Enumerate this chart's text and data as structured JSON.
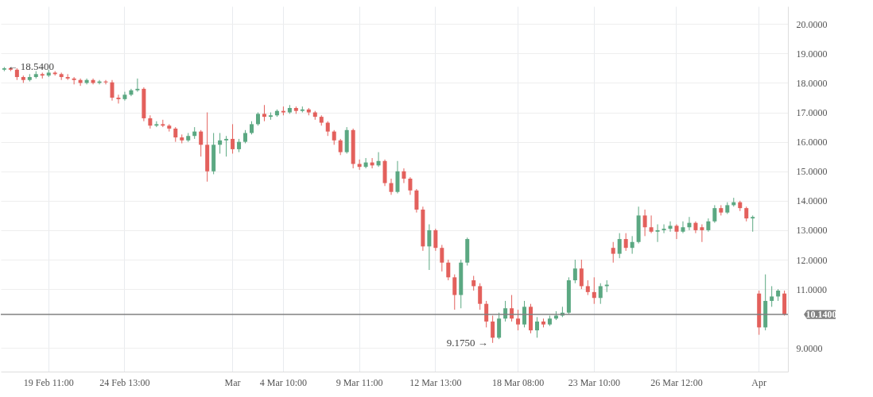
{
  "chart_data": {
    "type": "candlestick",
    "categories": [
      null,
      null,
      null,
      null,
      null,
      null,
      null,
      "19 Feb 11:00",
      null,
      null,
      null,
      null,
      null,
      null,
      null,
      null,
      null,
      null,
      null,
      "24 Feb 13:00",
      null,
      null,
      null,
      null,
      null,
      null,
      null,
      null,
      null,
      null,
      null,
      null,
      null,
      null,
      null,
      null,
      "Mar",
      null,
      null,
      null,
      null,
      null,
      null,
      null,
      "4 Mar 10:00",
      null,
      null,
      null,
      null,
      null,
      null,
      null,
      null,
      null,
      null,
      null,
      "9 Mar 11:00",
      null,
      null,
      null,
      null,
      null,
      null,
      null,
      null,
      null,
      null,
      null,
      "12 Mar 13:00",
      null,
      null,
      null,
      null,
      null,
      null,
      null,
      null,
      null,
      null,
      null,
      null,
      "18 Mar 08:00",
      null,
      null,
      null,
      null,
      null,
      null,
      null,
      null,
      null,
      null,
      null,
      "23 Mar 10:00",
      null,
      null,
      null,
      null,
      null,
      null,
      null,
      null,
      null,
      null,
      null,
      null,
      "26 Mar 12:00",
      null,
      null,
      null,
      null,
      null,
      null,
      null,
      null,
      null,
      null,
      null,
      null,
      "Apr",
      null,
      null,
      null,
      null
    ],
    "ohlc": [
      [
        18.45,
        18.54,
        18.4,
        18.5
      ],
      [
        18.5,
        18.52,
        18.4,
        18.45
      ],
      [
        18.45,
        18.5,
        18.1,
        18.2
      ],
      [
        18.2,
        18.25,
        18.0,
        18.1
      ],
      [
        18.1,
        18.3,
        18.05,
        18.2
      ],
      [
        18.2,
        18.4,
        18.15,
        18.3
      ],
      [
        18.3,
        18.35,
        18.15,
        18.25
      ],
      [
        18.25,
        18.45,
        18.2,
        18.35
      ],
      [
        18.35,
        18.4,
        18.25,
        18.3
      ],
      [
        18.3,
        18.35,
        18.1,
        18.2
      ],
      [
        18.2,
        18.3,
        18.1,
        18.15
      ],
      [
        18.15,
        18.2,
        17.95,
        18.1
      ],
      [
        18.1,
        18.15,
        17.9,
        18.0
      ],
      [
        18.0,
        18.15,
        17.95,
        18.1
      ],
      [
        18.1,
        18.15,
        17.95,
        18.0
      ],
      [
        18.0,
        18.1,
        17.95,
        18.05
      ],
      [
        18.05,
        18.1,
        17.95,
        18.02
      ],
      [
        18.02,
        18.1,
        17.4,
        17.5
      ],
      [
        17.5,
        17.6,
        17.3,
        17.45
      ],
      [
        17.45,
        17.7,
        17.4,
        17.6
      ],
      [
        17.6,
        17.8,
        17.55,
        17.75
      ],
      [
        17.75,
        18.15,
        17.7,
        17.8
      ],
      [
        17.8,
        17.85,
        16.7,
        16.8
      ],
      [
        16.8,
        16.9,
        16.45,
        16.55
      ],
      [
        16.55,
        16.7,
        16.5,
        16.6
      ],
      [
        16.6,
        16.75,
        16.5,
        16.55
      ],
      [
        16.55,
        16.6,
        16.35,
        16.45
      ],
      [
        16.45,
        16.5,
        16.0,
        16.15
      ],
      [
        16.15,
        16.25,
        15.95,
        16.05
      ],
      [
        16.05,
        16.3,
        16.0,
        16.2
      ],
      [
        16.2,
        16.5,
        16.1,
        16.35
      ],
      [
        16.35,
        16.4,
        15.5,
        15.9
      ],
      [
        15.9,
        17.0,
        14.65,
        15.0
      ],
      [
        15.0,
        16.3,
        14.9,
        15.9
      ],
      [
        15.9,
        16.3,
        15.6,
        16.05
      ],
      [
        16.05,
        16.2,
        15.5,
        16.1
      ],
      [
        16.1,
        16.6,
        15.6,
        15.75
      ],
      [
        15.75,
        16.1,
        15.65,
        16.0
      ],
      [
        16.0,
        16.4,
        15.95,
        16.3
      ],
      [
        16.3,
        16.7,
        16.25,
        16.6
      ],
      [
        16.6,
        17.0,
        16.55,
        16.95
      ],
      [
        16.95,
        17.25,
        16.7,
        16.85
      ],
      [
        16.85,
        17.0,
        16.75,
        16.9
      ],
      [
        16.9,
        17.1,
        16.85,
        17.05
      ],
      [
        17.05,
        17.2,
        16.9,
        17.0
      ],
      [
        17.0,
        17.25,
        16.95,
        17.15
      ],
      [
        17.15,
        17.2,
        16.95,
        17.05
      ],
      [
        17.05,
        17.2,
        17.0,
        17.1
      ],
      [
        17.1,
        17.15,
        16.9,
        17.0
      ],
      [
        17.0,
        17.05,
        16.75,
        16.85
      ],
      [
        16.85,
        16.9,
        16.55,
        16.65
      ],
      [
        16.65,
        16.7,
        16.2,
        16.35
      ],
      [
        16.35,
        16.4,
        15.9,
        16.05
      ],
      [
        16.05,
        16.1,
        15.55,
        15.65
      ],
      [
        15.65,
        16.5,
        15.6,
        16.4
      ],
      [
        16.4,
        16.45,
        15.1,
        15.25
      ],
      [
        15.25,
        15.4,
        15.05,
        15.15
      ],
      [
        15.15,
        15.45,
        15.1,
        15.3
      ],
      [
        15.3,
        15.45,
        15.1,
        15.2
      ],
      [
        15.2,
        15.65,
        15.15,
        15.35
      ],
      [
        15.35,
        15.4,
        14.5,
        14.6
      ],
      [
        14.6,
        14.75,
        14.2,
        14.3
      ],
      [
        14.3,
        15.35,
        14.25,
        15.0
      ],
      [
        15.0,
        15.1,
        14.6,
        14.75
      ],
      [
        14.75,
        14.8,
        14.2,
        14.35
      ],
      [
        14.35,
        14.4,
        13.6,
        13.7
      ],
      [
        13.7,
        13.8,
        12.3,
        12.45
      ],
      [
        12.45,
        13.2,
        11.65,
        13.0
      ],
      [
        13.0,
        13.05,
        12.3,
        12.4
      ],
      [
        12.4,
        12.5,
        11.6,
        11.9
      ],
      [
        11.9,
        12.0,
        11.3,
        11.4
      ],
      [
        11.4,
        11.5,
        10.3,
        10.8
      ],
      [
        10.8,
        12.0,
        10.35,
        11.9
      ],
      [
        11.9,
        12.75,
        11.8,
        12.7
      ],
      [
        11.3,
        11.45,
        10.95,
        11.1
      ],
      [
        11.1,
        11.2,
        10.3,
        10.5
      ],
      [
        10.5,
        10.6,
        9.7,
        9.9
      ],
      [
        9.9,
        10.1,
        9.175,
        9.35
      ],
      [
        9.35,
        10.2,
        9.3,
        10.0
      ],
      [
        10.0,
        10.6,
        9.9,
        10.35
      ],
      [
        10.35,
        10.8,
        9.9,
        10.0
      ],
      [
        10.0,
        10.3,
        9.6,
        9.8
      ],
      [
        9.8,
        10.6,
        9.7,
        10.4
      ],
      [
        10.4,
        10.5,
        9.5,
        9.6
      ],
      [
        9.6,
        10.05,
        9.35,
        9.9
      ],
      [
        9.9,
        10.0,
        9.7,
        9.8
      ],
      [
        9.8,
        10.1,
        9.75,
        10.0
      ],
      [
        10.0,
        10.25,
        9.95,
        10.1
      ],
      [
        10.1,
        10.4,
        10.05,
        10.2
      ],
      [
        10.2,
        11.4,
        10.15,
        11.3
      ],
      [
        11.3,
        12.0,
        11.2,
        11.7
      ],
      [
        11.7,
        12.0,
        11.0,
        11.1
      ],
      [
        11.1,
        11.3,
        10.8,
        10.9
      ],
      [
        10.9,
        11.4,
        10.5,
        10.7
      ],
      [
        10.7,
        11.2,
        10.5,
        11.1
      ],
      [
        11.1,
        11.3,
        10.9,
        11.15
      ],
      [
        12.4,
        12.6,
        11.9,
        12.2
      ],
      [
        12.2,
        12.9,
        12.05,
        12.7
      ],
      [
        12.7,
        12.9,
        12.3,
        12.4
      ],
      [
        12.4,
        12.8,
        12.2,
        12.6
      ],
      [
        12.6,
        13.8,
        12.55,
        13.5
      ],
      [
        13.5,
        13.7,
        12.8,
        13.1
      ],
      [
        13.1,
        13.5,
        12.9,
        12.95
      ],
      [
        12.95,
        13.2,
        12.6,
        13.0
      ],
      [
        13.0,
        13.2,
        12.9,
        13.05
      ],
      [
        13.05,
        13.3,
        12.95,
        13.15
      ],
      [
        13.15,
        13.2,
        12.7,
        12.95
      ],
      [
        12.95,
        13.3,
        12.9,
        13.1
      ],
      [
        13.1,
        13.45,
        13.0,
        13.25
      ],
      [
        13.25,
        13.3,
        12.9,
        13.0
      ],
      [
        13.1,
        13.2,
        12.6,
        13.0
      ],
      [
        13.0,
        13.4,
        12.95,
        13.3
      ],
      [
        13.3,
        13.85,
        13.25,
        13.75
      ],
      [
        13.75,
        13.85,
        13.5,
        13.6
      ],
      [
        13.6,
        13.95,
        13.55,
        13.85
      ],
      [
        13.85,
        14.1,
        13.8,
        13.95
      ],
      [
        13.95,
        14.0,
        13.65,
        13.75
      ],
      [
        13.75,
        13.8,
        13.3,
        13.4
      ],
      [
        13.4,
        13.5,
        12.95,
        13.45
      ],
      [
        10.85,
        10.95,
        9.45,
        9.7
      ],
      [
        9.7,
        11.5,
        9.6,
        10.6
      ],
      [
        10.6,
        11.1,
        10.4,
        10.75
      ],
      [
        10.75,
        11.0,
        10.6,
        10.95
      ],
      [
        10.85,
        10.95,
        10.1,
        10.14
      ]
    ],
    "colors": [
      "#5ba882",
      "#e3605c",
      "#e3605c",
      "#e3605c",
      "#5ba882",
      "#5ba882",
      "#e3605c",
      "#5ba882",
      "#e3605c",
      "#e3605c",
      "#e3605c",
      "#e3605c",
      "#e3605c",
      "#5ba882",
      "#e3605c",
      "#5ba882",
      "#e3605c",
      "#e3605c",
      "#e3605c",
      "#5ba882",
      "#5ba882",
      "#5ba882",
      "#e3605c",
      "#e3605c",
      "#5ba882",
      "#e3605c",
      "#e3605c",
      "#e3605c",
      "#e3605c",
      "#5ba882",
      "#5ba882",
      "#e3605c",
      "#e3605c",
      "#5ba882",
      "#5ba882",
      "#5ba882",
      "#e3605c",
      "#5ba882",
      "#5ba882",
      "#5ba882",
      "#5ba882",
      "#e3605c",
      "#5ba882",
      "#5ba882",
      "#e3605c",
      "#5ba882",
      "#e3605c",
      "#5ba882",
      "#e3605c",
      "#e3605c",
      "#e3605c",
      "#e3605c",
      "#e3605c",
      "#e3605c",
      "#5ba882",
      "#e3605c",
      "#e3605c",
      "#5ba882",
      "#e3605c",
      "#5ba882",
      "#e3605c",
      "#e3605c",
      "#5ba882",
      "#e3605c",
      "#e3605c",
      "#e3605c",
      "#e3605c",
      "#5ba882",
      "#e3605c",
      "#e3605c",
      "#e3605c",
      "#e3605c",
      "#5ba882",
      "#5ba882",
      "#e3605c",
      "#e3605c",
      "#e3605c",
      "#e3605c",
      "#5ba882",
      "#5ba882",
      "#e3605c",
      "#e3605c",
      "#5ba882",
      "#e3605c",
      "#5ba882",
      "#e3605c",
      "#5ba882",
      "#5ba882",
      "#5ba882",
      "#5ba882",
      "#5ba882",
      "#e3605c",
      "#e3605c",
      "#e3605c",
      "#5ba882",
      "#5ba882",
      "#e3605c",
      "#5ba882",
      "#e3605c",
      "#5ba882",
      "#5ba882",
      "#e3605c",
      "#e3605c",
      "#5ba882",
      "#5ba882",
      "#5ba882",
      "#e3605c",
      "#5ba882",
      "#5ba882",
      "#e3605c",
      "#e3605c",
      "#5ba882",
      "#5ba882",
      "#e3605c",
      "#5ba882",
      "#5ba882",
      "#e3605c",
      "#e3605c",
      "#5ba882",
      "#e3605c",
      "#5ba882",
      "#5ba882",
      "#5ba882",
      "#e3605c"
    ],
    "ylim": [
      8.2,
      20.6
    ],
    "yticks": [
      {
        "value": 9,
        "label": "9.0000"
      },
      {
        "value": 11,
        "label": "11.0000"
      },
      {
        "value": 12,
        "label": "12.0000"
      },
      {
        "value": 13,
        "label": "13.0000"
      },
      {
        "value": 14,
        "label": "14.0000"
      },
      {
        "value": 15,
        "label": "15.0000"
      },
      {
        "value": 16,
        "label": "16.0000"
      },
      {
        "value": 17,
        "label": "17.0000"
      },
      {
        "value": 18,
        "label": "18.0000"
      },
      {
        "value": 19,
        "label": "19.0000"
      },
      {
        "value": 20,
        "label": "20.0000"
      }
    ],
    "grid": true,
    "ref_lines": [
      {
        "axis": "y",
        "value": 10.14,
        "label": "10.1400",
        "color": "#808080"
      }
    ],
    "annotations": [
      "← 18.5400",
      "9.1750 →"
    ]
  }
}
